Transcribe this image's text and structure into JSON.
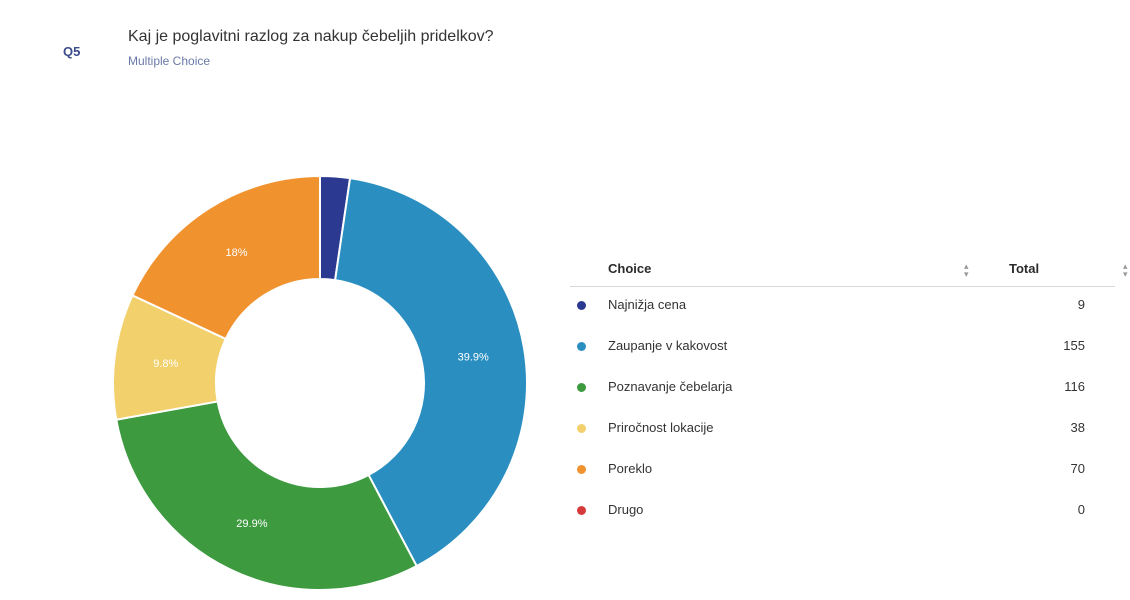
{
  "question": {
    "number": "Q5",
    "title": "Kaj je poglavitni razlog za nakup čebeljih pridelkov?",
    "type": "Multiple Choice"
  },
  "table": {
    "choice_header": "Choice",
    "total_header": "Total",
    "rows": [
      {
        "choice": "Najnižja cena",
        "total": "9"
      },
      {
        "choice": "Zaupanje v kakovost",
        "total": "155"
      },
      {
        "choice": "Poznavanje čebelarja",
        "total": "116"
      },
      {
        "choice": "Priročnost lokacije",
        "total": "38"
      },
      {
        "choice": "Poreklo",
        "total": "70"
      },
      {
        "choice": "Drugo",
        "total": "0"
      }
    ]
  },
  "chart_data": {
    "type": "pie",
    "categories": [
      "Najnižja cena",
      "Zaupanje v kakovost",
      "Poznavanje čebelarja",
      "Priročnost lokacije",
      "Poreklo",
      "Drugo"
    ],
    "values": [
      9,
      155,
      116,
      38,
      70,
      0
    ],
    "data_labels": [
      "",
      "39.9%",
      "29.9%",
      "9.8%",
      "18%",
      ""
    ],
    "colors": [
      "#2b3990",
      "#2a8fc0",
      "#3d9a3f",
      "#f2d06b",
      "#f0922e",
      "#d63a3a"
    ],
    "donut": true
  }
}
